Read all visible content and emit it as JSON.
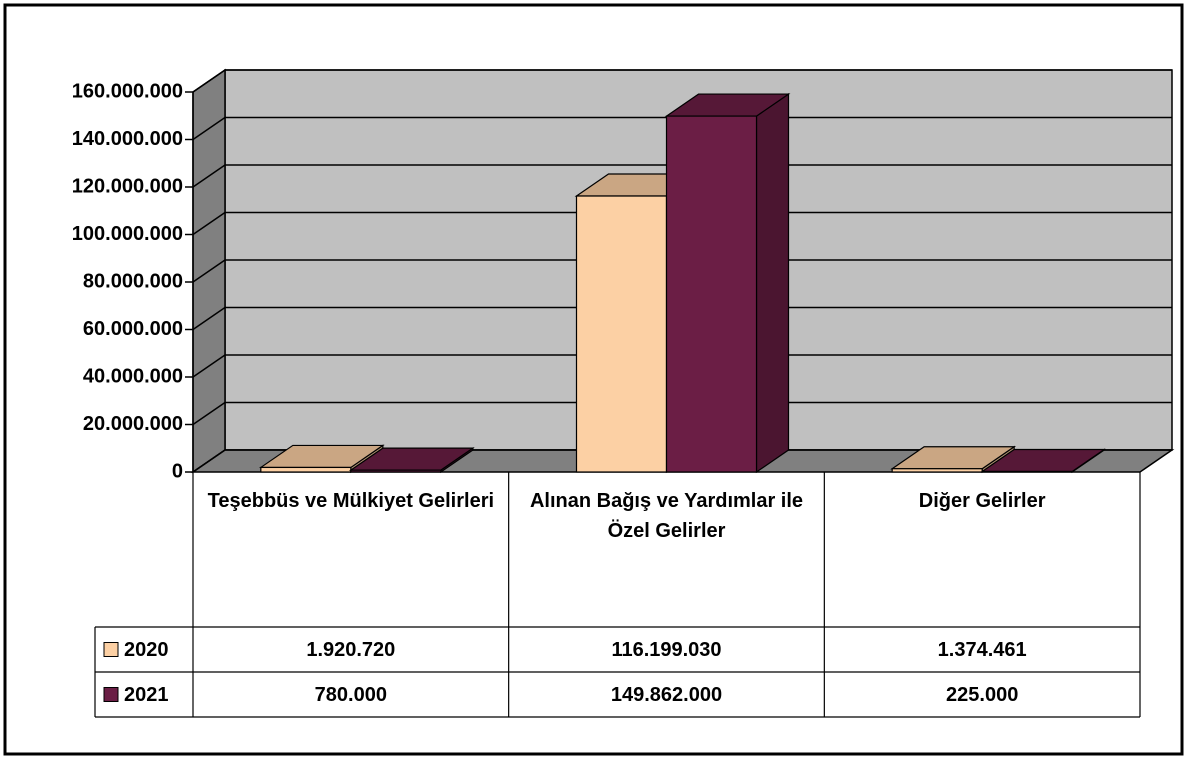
{
  "chart_data": {
    "type": "bar3d",
    "categories": [
      "Teşebbüs ve Mülkiyet Gelirleri",
      "Alınan Bağış ve Yardımlar ile Özel Gelirler",
      "Diğer Gelirler"
    ],
    "series": [
      {
        "name": "2020",
        "color": "#fcd0a4",
        "values": [
          1920720,
          116199030,
          1374461
        ],
        "value_labels": [
          "1.920.720",
          "116.199.030",
          "1.374.461"
        ]
      },
      {
        "name": "2021",
        "color": "#6b1e45",
        "values": [
          780000,
          149862000,
          225000
        ],
        "value_labels": [
          "780.000",
          "149.862.000",
          "225.000"
        ]
      }
    ],
    "ylim": [
      0,
      160000000
    ],
    "yticks": [
      0,
      {
        "value": 20000000,
        "label": "20.000.000"
      },
      {
        "value": 40000000,
        "label": "40.000.000"
      },
      {
        "value": 60000000,
        "label": "60.000.000"
      },
      {
        "value": 80000000,
        "label": "80.000.000"
      },
      {
        "value": 100000000,
        "label": "100.000.000"
      },
      {
        "value": 120000000,
        "label": "120.000.000"
      },
      {
        "value": 140000000,
        "label": "140.000.000"
      },
      {
        "value": 160000000,
        "label": "160.000.000"
      }
    ],
    "grid": true,
    "legend": "table"
  }
}
